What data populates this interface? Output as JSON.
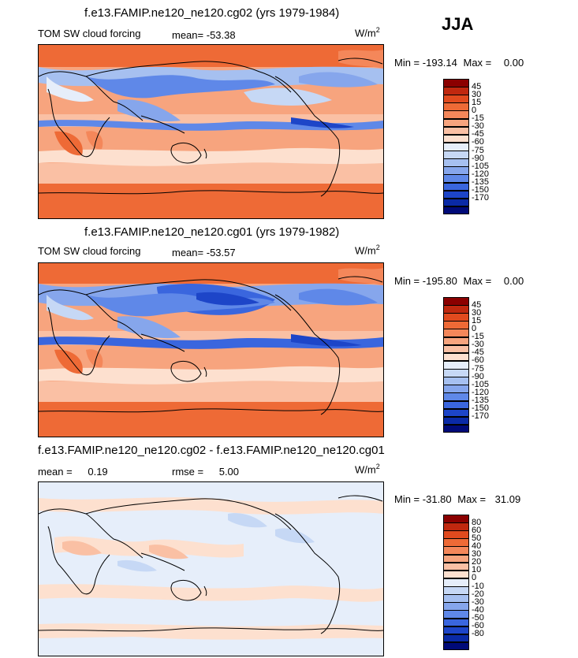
{
  "season": "JJA",
  "units_prefix": "W/m",
  "units_sup": "2",
  "min_label": "Min =",
  "max_label": "Max =",
  "mean_label": "mean=",
  "mean_label_diff": "mean =",
  "rmse_label": "rmse =",
  "panels": [
    {
      "title": "f.e13.FAMIP.ne120_ne120.cg02 (yrs 1979-1984)",
      "variable": "TOM SW cloud forcing",
      "mean": "-53.38",
      "min": "-193.14",
      "max": "0.00",
      "colorbar": {
        "colors": [
          "#8b0000",
          "#c0280f",
          "#e14a1e",
          "#ee6a36",
          "#f4875a",
          "#f7a47e",
          "#fac0a4",
          "#fde0cf",
          "#e6eefa",
          "#c6d8f5",
          "#a6c0f0",
          "#86a6ec",
          "#5f88e8",
          "#3a66de",
          "#1d45c8",
          "#0a2aa6",
          "#000a78"
        ],
        "ticks": [
          "45",
          "30",
          "15",
          "0",
          "-15",
          "-30",
          "-45",
          "-60",
          "-75",
          "-90",
          "-105",
          "-120",
          "-135",
          "-150",
          "-170"
        ]
      }
    },
    {
      "title": "f.e13.FAMIP.ne120_ne120.cg01 (yrs 1979-1982)",
      "variable": "TOM SW cloud forcing",
      "mean": "-53.57",
      "min": "-195.80",
      "max": "0.00",
      "colorbar": {
        "colors": [
          "#8b0000",
          "#c0280f",
          "#e14a1e",
          "#ee6a36",
          "#f4875a",
          "#f7a47e",
          "#fac0a4",
          "#fde0cf",
          "#e6eefa",
          "#c6d8f5",
          "#a6c0f0",
          "#86a6ec",
          "#5f88e8",
          "#3a66de",
          "#1d45c8",
          "#0a2aa6",
          "#000a78"
        ],
        "ticks": [
          "45",
          "30",
          "15",
          "0",
          "-15",
          "-30",
          "-45",
          "-60",
          "-75",
          "-90",
          "-105",
          "-120",
          "-135",
          "-150",
          "-170"
        ]
      }
    },
    {
      "title": "f.e13.FAMIP.ne120_ne120.cg02 - f.e13.FAMIP.ne120_ne120.cg01",
      "mean": "0.19",
      "rmse": "5.00",
      "min": "-31.80",
      "max": "31.09",
      "colorbar": {
        "colors": [
          "#8b0000",
          "#c0280f",
          "#e14a1e",
          "#ee6a36",
          "#f4875a",
          "#f7a47e",
          "#fac0a4",
          "#fde0cf",
          "#e6eefa",
          "#c6d8f5",
          "#a6c0f0",
          "#86a6ec",
          "#5f88e8",
          "#3a66de",
          "#1d45c8",
          "#0a2aa6",
          "#000a78"
        ],
        "ticks": [
          "80",
          "60",
          "50",
          "40",
          "30",
          "20",
          "10",
          "0",
          "-10",
          "-20",
          "-30",
          "-40",
          "-50",
          "-60",
          "-80"
        ]
      }
    }
  ],
  "chart_data": [
    {
      "type": "heatmap",
      "title": "f.e13.FAMIP.ne120_ne120.cg02 (yrs 1979-1984)",
      "subtitle": "TOM SW cloud forcing",
      "season": "JJA",
      "units": "W/m2",
      "mean": -53.38,
      "min": -193.14,
      "max": 0.0,
      "levels": [
        45,
        30,
        15,
        0,
        -15,
        -30,
        -45,
        -60,
        -75,
        -90,
        -105,
        -120,
        -135,
        -150,
        -170
      ],
      "xlim": [
        0,
        360
      ],
      "ylim": [
        -90,
        90
      ]
    },
    {
      "type": "heatmap",
      "title": "f.e13.FAMIP.ne120_ne120.cg01 (yrs 1979-1982)",
      "subtitle": "TOM SW cloud forcing",
      "season": "JJA",
      "units": "W/m2",
      "mean": -53.57,
      "min": -195.8,
      "max": 0.0,
      "levels": [
        45,
        30,
        15,
        0,
        -15,
        -30,
        -45,
        -60,
        -75,
        -90,
        -105,
        -120,
        -135,
        -150,
        -170
      ],
      "xlim": [
        0,
        360
      ],
      "ylim": [
        -90,
        90
      ]
    },
    {
      "type": "heatmap",
      "title": "f.e13.FAMIP.ne120_ne120.cg02 - f.e13.FAMIP.ne120_ne120.cg01",
      "season": "JJA",
      "units": "W/m2",
      "mean": 0.19,
      "rmse": 5.0,
      "min": -31.8,
      "max": 31.09,
      "levels": [
        80,
        60,
        50,
        40,
        30,
        20,
        10,
        0,
        -10,
        -20,
        -30,
        -40,
        -50,
        -60,
        -80
      ],
      "xlim": [
        0,
        360
      ],
      "ylim": [
        -90,
        90
      ]
    }
  ]
}
